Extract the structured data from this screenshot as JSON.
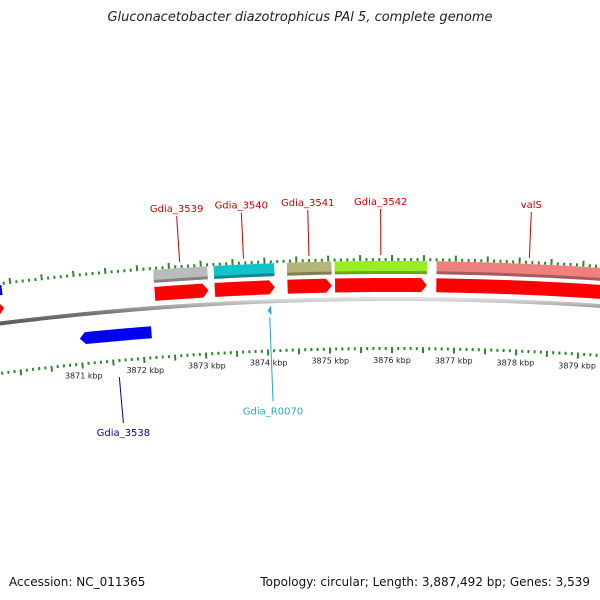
{
  "title": "Gluconacetobacter diazotrophicus PAl 5, complete genome",
  "footer": {
    "accession": "Accession: NC_011365",
    "stats": "Topology: circular; Length: 3,887,492 bp; Genes: 3,539"
  },
  "colors": {
    "backbone": "#888888",
    "tick": "#2a8a2a",
    "cds": "#ff0000",
    "label_forward": "#cc0000",
    "label_reverse": "#0000aa",
    "label_rna": "#22aacc"
  },
  "ruler": {
    "unit": "kbp",
    "ticks": [
      {
        "label": "3871 kbp",
        "pos_kbp": 3871
      },
      {
        "label": "3872 kbp",
        "pos_kbp": 3872
      },
      {
        "label": "3873 kbp",
        "pos_kbp": 3873
      },
      {
        "label": "3874 kbp",
        "pos_kbp": 3874
      },
      {
        "label": "3875 kbp",
        "pos_kbp": 3875
      },
      {
        "label": "3876 kbp",
        "pos_kbp": 3876
      },
      {
        "label": "3877 kbp",
        "pos_kbp": 3877
      },
      {
        "label": "3878 kbp",
        "pos_kbp": 3878
      },
      {
        "label": "3879 kbp",
        "pos_kbp": 3879
      }
    ]
  },
  "genes": [
    {
      "name": "Gdia_3538",
      "strand": "reverse",
      "start_kbp": 3871.0,
      "end_kbp": 3872.15,
      "color": "#0000ee"
    },
    {
      "name": "Gdia_3539",
      "strand": "forward",
      "start_kbp": 3872.25,
      "end_kbp": 3873.1,
      "color": "#bbbbbb"
    },
    {
      "name": "Gdia_3540",
      "strand": "forward",
      "start_kbp": 3873.2,
      "end_kbp": 3874.15,
      "color": "#11c4cc"
    },
    {
      "name": "Gdia_3541",
      "strand": "forward",
      "start_kbp": 3874.35,
      "end_kbp": 3875.05,
      "color": "#b5b47a"
    },
    {
      "name": "Gdia_3542",
      "strand": "forward",
      "start_kbp": 3875.1,
      "end_kbp": 3876.55,
      "color": "#99ee22"
    },
    {
      "name": "valS",
      "strand": "forward",
      "start_kbp": 3876.7,
      "end_kbp": 3879.6,
      "color": "#ee8080"
    },
    {
      "name": "Gdia_R0070",
      "strand": "reverse",
      "type": "rna",
      "start_kbp": 3874.02,
      "end_kbp": 3874.08,
      "color": "#22aacc"
    }
  ]
}
